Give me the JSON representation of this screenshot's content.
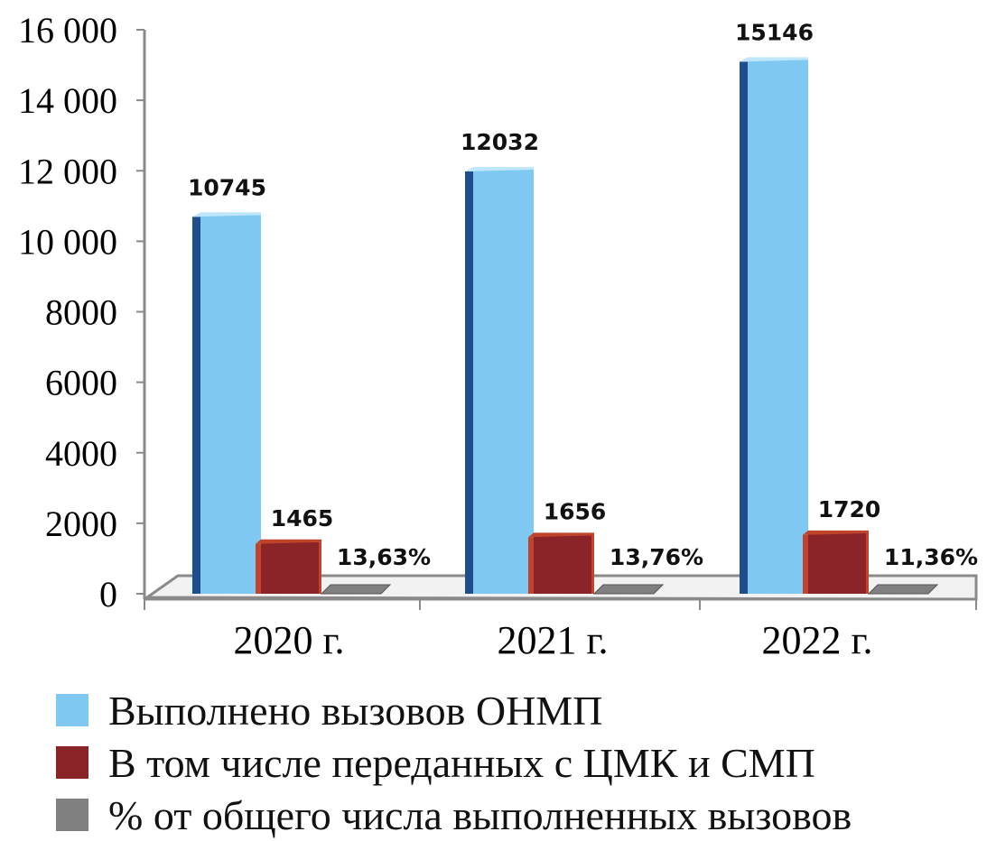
{
  "chart_data": {
    "type": "bar",
    "categories": [
      "2020 г.",
      "2021 г.",
      "2022 г."
    ],
    "y_ticks": [
      "0",
      "2000",
      "4000",
      "6000",
      "8000",
      "10 000",
      "12 000",
      "14 000",
      "16 000"
    ],
    "ylim": [
      0,
      16000
    ],
    "grid": false,
    "legend_position": "bottom",
    "series": [
      {
        "name": "Выполнено вызовов ОНМП",
        "values": [
          10745,
          12032,
          15146
        ],
        "labels": [
          "10745",
          "12032",
          "15146"
        ],
        "color": "#7ec8f2",
        "side_color": "#1e4f8c"
      },
      {
        "name": "В том числе переданных с ЦМК и СМП",
        "values": [
          1465,
          1656,
          1720
        ],
        "labels": [
          "1465",
          "1656",
          "1720"
        ],
        "color": "#8b2428",
        "side_color": "#c0442a"
      },
      {
        "name": "% от общего числа выполненных вызовов",
        "values": [
          13.63,
          13.76,
          11.36
        ],
        "labels": [
          "13,63%",
          "13,76%",
          "11,36%"
        ],
        "color": "#808080",
        "side_color": "#555555"
      }
    ]
  }
}
